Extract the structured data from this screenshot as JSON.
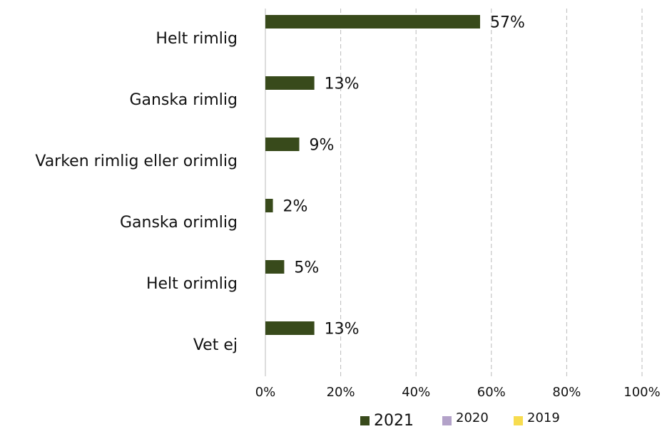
{
  "chart_data": {
    "type": "hbar",
    "categories": [
      "Helt rimlig",
      "Ganska rimlig",
      "Varken rimlig eller orimlig",
      "Ganska orimlig",
      "Helt orimlig",
      "Vet ej"
    ],
    "series": [
      {
        "name": "2021",
        "color": "#384a1b",
        "values": [
          57,
          13,
          9,
          2,
          5,
          13
        ],
        "value_labels": [
          "57%",
          "13%",
          "9%",
          "2%",
          "5%",
          "13%"
        ]
      },
      {
        "name": "2020",
        "color": "#b3a2c9",
        "values": [
          null,
          null,
          null,
          null,
          null,
          null
        ]
      },
      {
        "name": "2019",
        "color": "#f7dc4f",
        "values": [
          null,
          null,
          null,
          null,
          null,
          null
        ]
      }
    ],
    "xlim": [
      0,
      100
    ],
    "xticks": [
      {
        "value": 0,
        "label": "0%"
      },
      {
        "value": 20,
        "label": "20%"
      },
      {
        "value": 40,
        "label": "40%"
      },
      {
        "value": 60,
        "label": "60%"
      },
      {
        "value": 80,
        "label": "80%"
      },
      {
        "value": 100,
        "label": "100%"
      }
    ],
    "grid": true,
    "legend": "bottom"
  }
}
